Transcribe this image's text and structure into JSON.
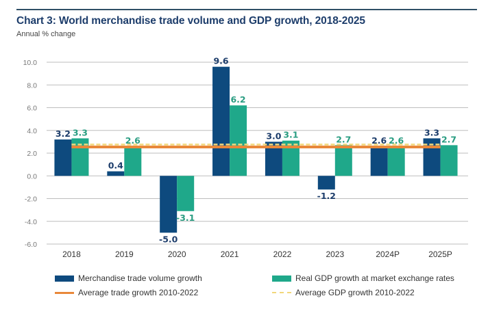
{
  "header": {
    "title": "Chart 3: World merchandise trade volume and GDP growth, 2018-2025",
    "subtitle": "Annual % change"
  },
  "colors": {
    "trade": "#0e4a7e",
    "gdp": "#1fa88a",
    "avg_trade": "#e8883a",
    "avg_gdp": "#f2d77a",
    "trade_label": "#1d3d6b",
    "gdp_label": "#2a9d82",
    "grid": "#bdbdbd"
  },
  "legend": {
    "items": [
      {
        "label": "Merchandise trade volume growth",
        "kind": "bar",
        "color_key": "trade"
      },
      {
        "label": "Real GDP growth at market exchange rates",
        "kind": "bar",
        "color_key": "gdp"
      },
      {
        "label": "Average trade growth 2010-2022",
        "kind": "line",
        "color_key": "avg_trade"
      },
      {
        "label": "Average GDP growth 2010-2022",
        "kind": "dashed",
        "color_key": "avg_gdp"
      }
    ]
  },
  "chart_data": {
    "type": "bar",
    "title": "Chart 3: World merchandise trade volume and GDP growth, 2018-2025",
    "subtitle": "Annual % change",
    "xlabel": "",
    "ylabel": "Annual % change",
    "categories": [
      "2018",
      "2019",
      "2020",
      "2021",
      "2022",
      "2023",
      "2024P",
      "2025P"
    ],
    "series": [
      {
        "name": "Merchandise trade volume growth",
        "values": [
          3.2,
          0.4,
          -5.0,
          9.6,
          3.0,
          -1.2,
          2.6,
          3.3
        ],
        "labels": [
          "3.2",
          "0.4",
          "-5.0",
          "9.6",
          "3.0",
          "-1.2",
          "2.6",
          "3.3"
        ]
      },
      {
        "name": "Real GDP growth at market exchange rates",
        "values": [
          3.3,
          2.6,
          -3.1,
          6.2,
          3.1,
          2.7,
          2.6,
          2.7
        ],
        "labels": [
          "3.3",
          "2.6",
          "-3.1",
          "6.2",
          "3.1",
          "2.7",
          "2.6",
          "2.7"
        ]
      }
    ],
    "reference_lines": [
      {
        "name": "Average trade growth 2010-2022",
        "value": 2.6,
        "style": "solid"
      },
      {
        "name": "Average GDP growth 2010-2022",
        "value": 2.7,
        "style": "dashed"
      }
    ],
    "ylim": [
      -6.0,
      10.0
    ],
    "yticks": [
      "10.0",
      "8.0",
      "6.0",
      "4.0",
      "2.0",
      "0.0",
      "-2.0",
      "-4.0",
      "-6.0"
    ],
    "ytick_values": [
      10,
      8,
      6,
      4,
      2,
      0,
      -2,
      -4,
      -6
    ],
    "grid": true,
    "legend_position": "bottom"
  }
}
